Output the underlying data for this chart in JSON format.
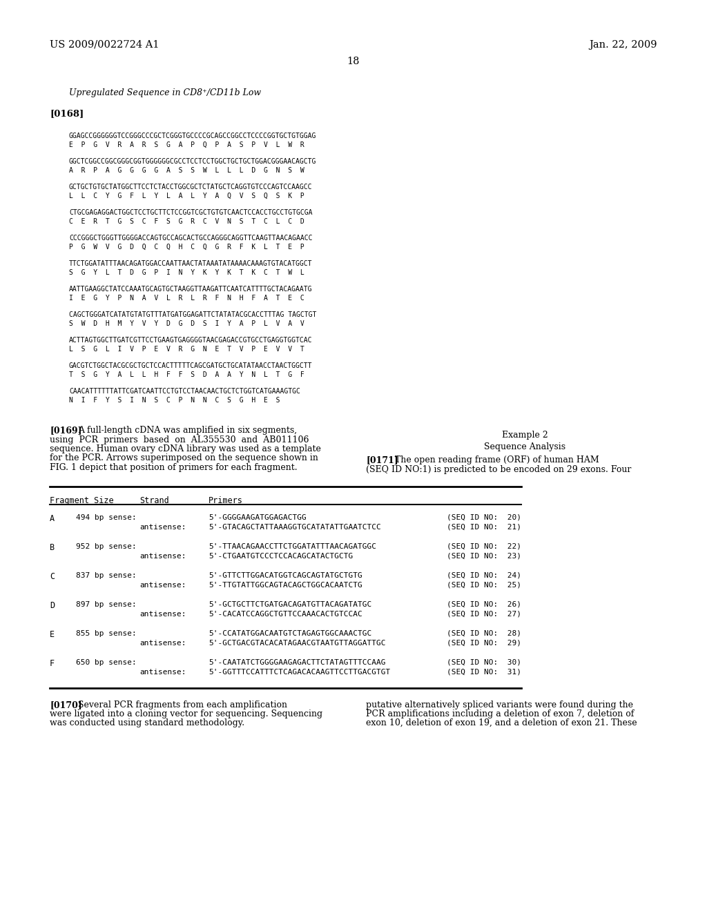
{
  "bg_color": "#ffffff",
  "header_left": "US 2009/0022724 A1",
  "header_right": "Jan. 22, 2009",
  "page_number": "18",
  "section_title": "Upregulated Sequence in CD8⁺/CD11b Low",
  "paragraph_label": "[0168]",
  "sequences": [
    {
      "dna": "GGAGCCGGGGGGTCCGGGCCCGCTCGGGTGCCCCGCAGCCGGCCTCCCCGGTGCTGTGGAG",
      "aa": "E  P  G  V  R  A  R  S  G  A  P  Q  P  A  S  P  V  L  W  R"
    },
    {
      "dna": "GGCTCGGCCGGCGGGCGGTGGGGGGCGCCTCCTCCTGGCTGCTGCTGGACGGGAACAGCTG",
      "aa": "A  R  P  A  G  G  G  G  A  S  S  W  L  L  L  D  G  N  S  W"
    },
    {
      "dna": "GCTGCTGTGCTATGGCTTCCTCTACCTGGCGCTCTATGCTCAGGTGTCCCAGTCCAAGCC",
      "aa": "L  L  C  Y  G  F  L  Y  L  A  L  Y  A  Q  V  S  Q  S  K  P"
    },
    {
      "dna": "CTGCGAGAGGACTGGCTCCTGCTTCTCCGGTCGCTGTGTCAACTCCACCTGCCTGTGCGA",
      "aa": "C  E  R  T  G  S  C  F  S  G  R  C  V  N  S  T  C  L  C  D"
    },
    {
      "dna": "CCCGGGCTGGGTTGGGGACCAGTGCCAGCACTGCCAGGGCAGGTTCAAGTTAACAGAACC",
      "aa": "P  G  W  V  G  D  Q  C  Q  H  C  Q  G  R  F  K  L  T  E  P"
    },
    {
      "dna": "TTCTGGATATTTAACAGATGGACCAATTAACTATAAATATAAAACAAAGTGTACATGGCT",
      "aa": "S  G  Y  L  T  D  G  P  I  N  Y  K  Y  K  T  K  C  T  W  L"
    },
    {
      "dna": "AATTGAAGGCTATCCAAATGCAGTGCTAAGGTTAAGATTCAATCATTTTGCTACAGAATG",
      "aa": "I  E  G  Y  P  N  A  V  L  R  L  R  F  N  H  F  A  T  E  C"
    },
    {
      "dna": "CAGCTGGGATCATATGTATGTTTATGATGGAGATTCTATATACGCACCTTTAG TAGCTGT",
      "aa": "S  W  D  H  M  Y  V  Y  D  G  D  S  I  Y  A  P  L  V  A  V"
    },
    {
      "dna": "ACTTAGTGGCTTGATCGTTCCTGAAGTGAGGGGTAACGAGACCGTGCCTGAGGTGGTCAC",
      "aa": "L  S  G  L  I  V  P  E  V  R  G  N  E  T  V  P  E  V  V  T"
    },
    {
      "dna": "GACGTCTGGCTACGCGCTGCTCCACTTTTTCAGCGATGCTGCATATAACCTAACTGGCTT",
      "aa": "T  S  G  Y  A  L  L  H  F  F  S  D  A  A  Y  N  L  T  G  F"
    },
    {
      "dna": "CAACATTTTTTATTCGATCAATTCCTGTCCTAACAACTGCTCTGGTCATGAAAGTGC",
      "aa": "N  I  F  Y  S  I  N  S  C  P  N  N  C  S  G  H  E  S"
    }
  ],
  "para169": "[0169]",
  "para169_text": [
    "A full-length cDNA was amplified in six segments,",
    "using  PCR  primers  based  on  AL355530  and  AB011106",
    "sequence. Human ovary cDNA library was used as a template",
    "for the PCR. Arrows superimposed on the sequence shown in",
    "FIG. 1 depict that position of primers for each fragment."
  ],
  "example2_title": "Example 2",
  "example2_subtitle": "Sequence Analysis",
  "para171_label": "[0171]",
  "para171_text": [
    "The open reading frame (ORF) of human HAM",
    "(SEQ ID NO:1) is predicted to be encoded on 29 exons. Four"
  ],
  "table_rows": [
    {
      "fragment": "A",
      "size": "494 bp",
      "strand1": "sense:",
      "primer1": "5'-GGGGAAGATGGAGACTGG",
      "seq1": "(SEQ ID NO:  20)",
      "strand2": "antisense:",
      "primer2": "5'-GTACAGCTATTAAAGGTGCATATATTGAATCTCC",
      "seq2": "(SEQ ID NO:  21)"
    },
    {
      "fragment": "B",
      "size": "952 bp",
      "strand1": "sense:",
      "primer1": "5'-TTAACAGAACCTTCTGGATATTTAACAGATGGC",
      "seq1": "(SEQ ID NO:  22)",
      "strand2": "antisense:",
      "primer2": "5'-CTGAATGTCCCTCCACAGCATACTGCTG",
      "seq2": "(SEQ ID NO:  23)"
    },
    {
      "fragment": "C",
      "size": "837 bp",
      "strand1": "sense:",
      "primer1": "5'-GTTCTTGGACATGGTCAGCAGTATGCTGTG",
      "seq1": "(SEQ ID NO:  24)",
      "strand2": "antisense:",
      "primer2": "5'-TTGTATTGGCAGTACAGCTGGCACAATCTG",
      "seq2": "(SEQ ID NO:  25)"
    },
    {
      "fragment": "D",
      "size": "897 bp",
      "strand1": "sense:",
      "primer1": "5'-GCTGCTTCTGATGACAGATGTTACAGATATGC",
      "seq1": "(SEQ ID NO:  26)",
      "strand2": "antisense:",
      "primer2": "5'-CACATCCAGGCTGTTCCAAACACTGTCCAC",
      "seq2": "(SEQ ID NO:  27)"
    },
    {
      "fragment": "E",
      "size": "855 bp",
      "strand1": "sense:",
      "primer1": "5'-CCATATGGACAATGTCTAGAGTGGCAAACTGC",
      "seq1": "(SEQ ID NO:  28)",
      "strand2": "antisense:",
      "primer2": "5'-GCTGACGTACACATAGAACGTAATGTTAGGATTGC",
      "seq2": "(SEQ ID NO:  29)"
    },
    {
      "fragment": "F",
      "size": "650 bp",
      "strand1": "sense:",
      "primer1": "5'-CAATATCTGGGGAAGAGACTTCTATAGTTTCCAAG",
      "seq1": "(SEQ ID NO:  30)",
      "strand2": "antisense:",
      "primer2": "5'-GGTTTCCATTTCTCAGACACAAGTTCCTTGACGTGT",
      "seq2": "(SEQ ID NO:  31)"
    }
  ],
  "para170_label": "[0170]",
  "para170_left_text": [
    "Several PCR fragments from each amplification",
    "were ligated into a cloning vector for sequencing. Sequencing",
    "was conducted using standard methodology."
  ],
  "para170_right_text": [
    "putative alternatively spliced variants were found during the",
    "PCR amplifications including a deletion of exon 7, deletion of",
    "exon 10, deletion of exon 19, and a deletion of exon 21. These"
  ]
}
